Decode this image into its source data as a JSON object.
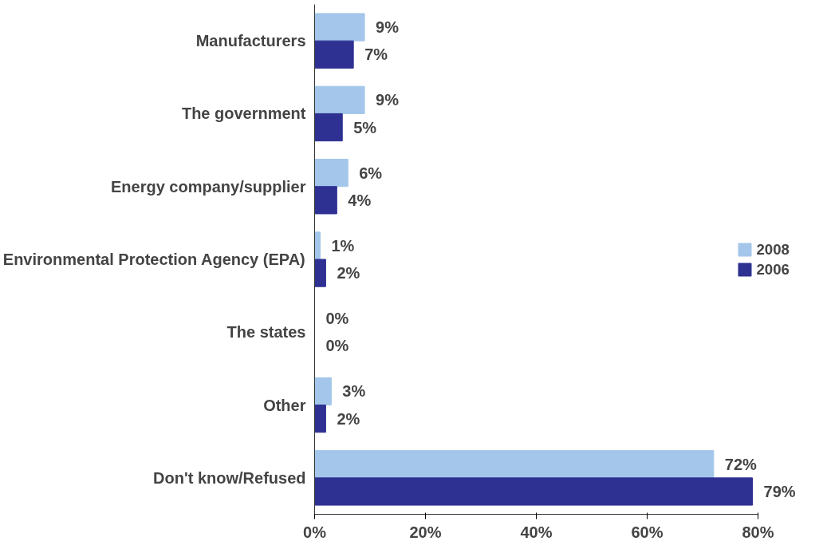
{
  "chart_data": {
    "type": "bar",
    "orientation": "horizontal",
    "categories": [
      "Manufacturers",
      "The government",
      "Energy company/supplier",
      "Environmental Protection Agency (EPA)",
      "The states",
      "Other",
      "Don't know/Refused"
    ],
    "series": [
      {
        "name": "2008",
        "color": "#a3c6ea",
        "values": [
          9,
          9,
          6,
          1,
          0,
          3,
          72
        ],
        "value_labels": [
          "9%",
          "9%",
          "6%",
          "1%",
          "0%",
          "3%",
          "72%"
        ]
      },
      {
        "name": "2006",
        "color": "#2e3192",
        "values": [
          7,
          5,
          4,
          2,
          0,
          2,
          79
        ],
        "value_labels": [
          "7%",
          "5%",
          "4%",
          "2%",
          "0%",
          "2%",
          "79%"
        ]
      }
    ],
    "xlim": [
      0,
      80
    ],
    "xticks": [
      {
        "value": 0,
        "label": "0%"
      },
      {
        "value": 20,
        "label": "20%"
      },
      {
        "value": 40,
        "label": "40%"
      },
      {
        "value": 60,
        "label": "60%"
      },
      {
        "value": 80,
        "label": "80%"
      }
    ],
    "grid": false,
    "legend": "right"
  }
}
